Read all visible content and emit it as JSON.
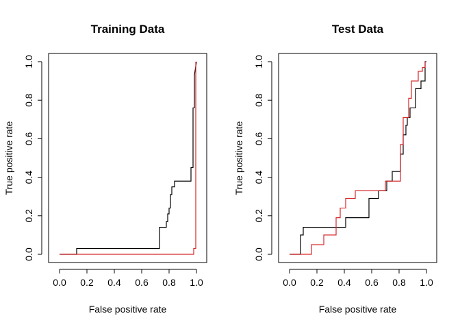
{
  "chart_data": [
    {
      "type": "line",
      "title": "Training Data",
      "xlabel": "False positive rate",
      "ylabel": "True positive rate",
      "xlim": [
        0,
        1
      ],
      "ylim": [
        0,
        1
      ],
      "xticks": [
        "0.0",
        "0.2",
        "0.4",
        "0.6",
        "0.8",
        "1.0"
      ],
      "yticks": [
        "0.0",
        "0.2",
        "0.4",
        "0.6",
        "0.8",
        "1.0"
      ],
      "grid": false,
      "series": [
        {
          "color": "#000000",
          "step": true,
          "x": [
            0.0,
            0.125,
            0.125,
            0.73,
            0.73,
            0.78,
            0.78,
            0.79,
            0.79,
            0.8,
            0.8,
            0.81,
            0.81,
            0.82,
            0.82,
            0.84,
            0.84,
            0.86,
            0.86,
            0.96,
            0.96,
            0.975,
            0.975,
            0.985,
            0.985,
            1.0
          ],
          "y": [
            0.0,
            0.0,
            0.03,
            0.03,
            0.14,
            0.14,
            0.17,
            0.17,
            0.21,
            0.21,
            0.24,
            0.24,
            0.31,
            0.31,
            0.35,
            0.35,
            0.38,
            0.38,
            0.38,
            0.38,
            0.45,
            0.45,
            0.76,
            0.76,
            0.93,
            1.0
          ]
        },
        {
          "color": "#d62728",
          "step": true,
          "x": [
            0.0,
            0.98,
            0.98,
            0.995,
            0.995
          ],
          "y": [
            0.0,
            0.0,
            0.03,
            0.03,
            1.0
          ]
        }
      ]
    },
    {
      "type": "line",
      "title": "Test Data",
      "xlabel": "False positive rate",
      "ylabel": "True positive rate",
      "xlim": [
        0,
        1
      ],
      "ylim": [
        0,
        1
      ],
      "xticks": [
        "0.0",
        "0.2",
        "0.4",
        "0.6",
        "0.8",
        "1.0"
      ],
      "yticks": [
        "0.0",
        "0.2",
        "0.4",
        "0.6",
        "0.8",
        "1.0"
      ],
      "grid": false,
      "series": [
        {
          "color": "#000000",
          "step": true,
          "x": [
            0.0,
            0.08,
            0.08,
            0.1,
            0.1,
            0.41,
            0.41,
            0.58,
            0.58,
            0.65,
            0.65,
            0.71,
            0.71,
            0.75,
            0.75,
            0.81,
            0.81,
            0.83,
            0.83,
            0.85,
            0.85,
            0.86,
            0.86,
            0.88,
            0.88,
            0.92,
            0.92,
            0.96,
            0.96,
            0.99,
            0.99,
            1.0
          ],
          "y": [
            0.0,
            0.0,
            0.1,
            0.1,
            0.14,
            0.14,
            0.19,
            0.19,
            0.29,
            0.29,
            0.33,
            0.33,
            0.38,
            0.38,
            0.43,
            0.43,
            0.52,
            0.52,
            0.62,
            0.62,
            0.67,
            0.67,
            0.71,
            0.71,
            0.76,
            0.76,
            0.86,
            0.86,
            0.9,
            0.9,
            1.0,
            1.0
          ]
        },
        {
          "color": "#d62728",
          "step": true,
          "x": [
            0.0,
            0.16,
            0.16,
            0.25,
            0.25,
            0.34,
            0.34,
            0.37,
            0.37,
            0.41,
            0.41,
            0.48,
            0.48,
            0.7,
            0.7,
            0.81,
            0.81,
            0.83,
            0.83,
            0.87,
            0.87,
            0.89,
            0.89,
            0.94,
            0.94,
            0.97,
            0.97,
            0.99,
            0.99
          ],
          "y": [
            0.0,
            0.0,
            0.05,
            0.05,
            0.1,
            0.1,
            0.19,
            0.19,
            0.24,
            0.24,
            0.29,
            0.29,
            0.33,
            0.33,
            0.38,
            0.38,
            0.57,
            0.57,
            0.71,
            0.71,
            0.81,
            0.81,
            0.9,
            0.9,
            0.95,
            0.95,
            0.97,
            0.97,
            1.0
          ]
        }
      ]
    }
  ]
}
